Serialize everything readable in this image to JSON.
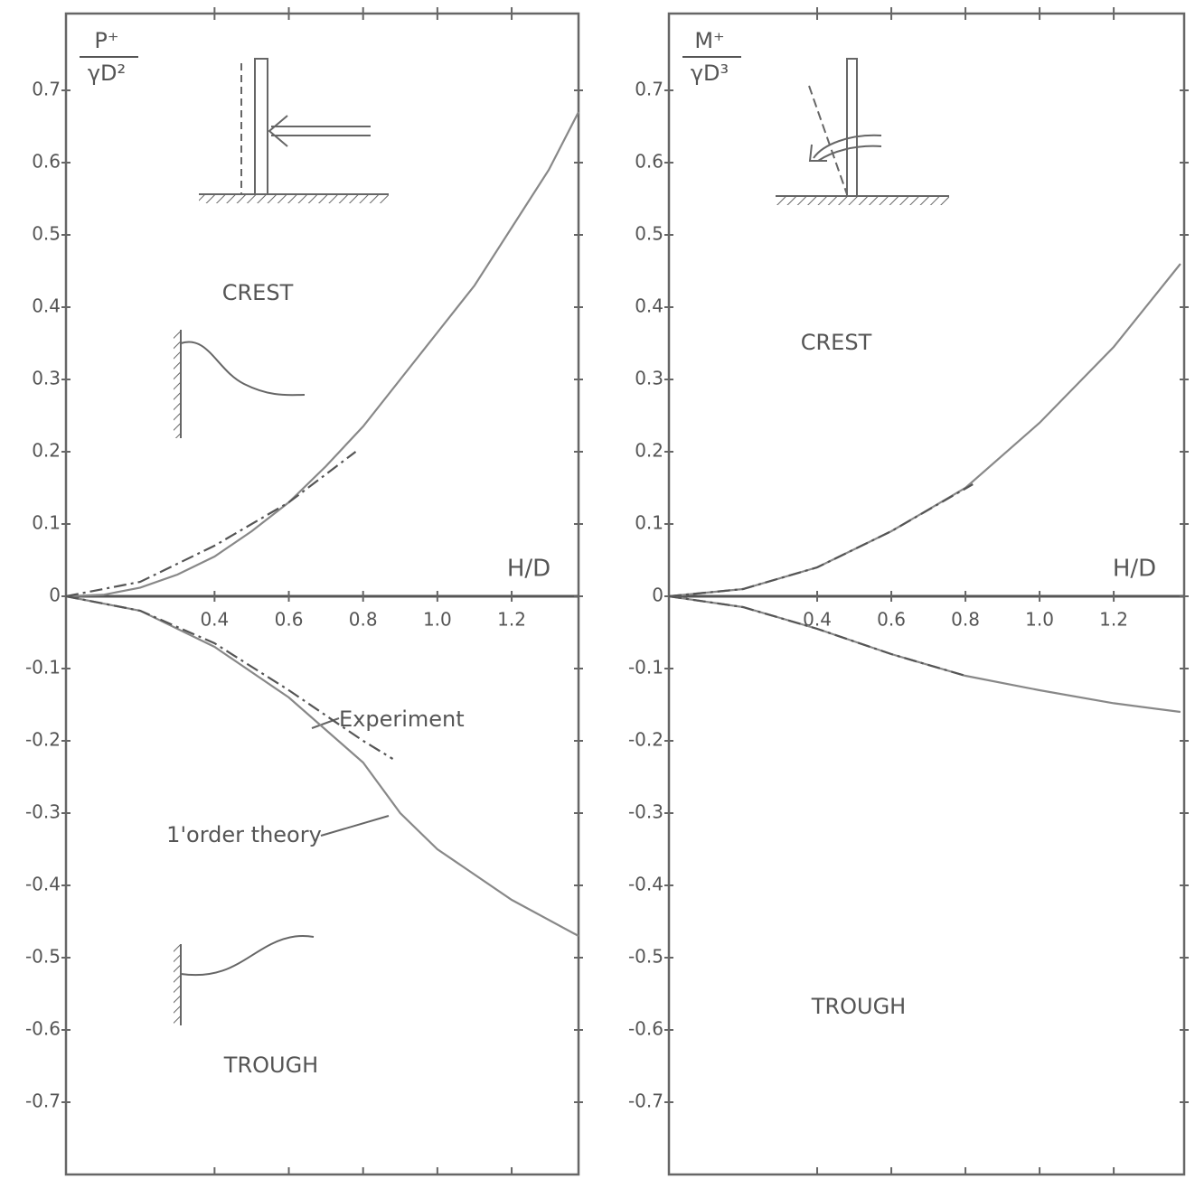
{
  "chart_data": [
    {
      "type": "line",
      "ylabel_num": "P⁺",
      "ylabel_den": "γD²",
      "xlabel": "H/D",
      "xlim": [
        0,
        1.38
      ],
      "ylim": [
        -0.8,
        0.8
      ],
      "xticks": [
        0.4,
        0.6,
        0.8,
        {
          "value": 1,
          "label": "1.0"
        },
        1.2
      ],
      "yticks": [
        0.7,
        0.6,
        0.5,
        0.4,
        0.3,
        0.2,
        0.1,
        0,
        -0.1,
        -0.2,
        -0.3,
        -0.4,
        -0.5,
        -0.6,
        -0.7
      ],
      "annotations": [
        "CREST",
        "TROUGH",
        "Experiment",
        "1'order theory"
      ],
      "series": [
        {
          "color": "#888",
          "dash": "solid",
          "x": [
            0,
            0.1,
            0.2,
            0.3,
            0.4,
            0.5,
            0.6,
            0.7,
            0.8,
            0.9,
            1.0,
            1.1,
            1.2,
            1.3,
            1.38
          ],
          "values": [
            0,
            0.002,
            0.012,
            0.03,
            0.055,
            0.09,
            0.13,
            0.18,
            0.235,
            0.3,
            0.365,
            0.43,
            0.51,
            0.59,
            0.67
          ]
        },
        {
          "color": "#555",
          "dash": "dash-dot",
          "x": [
            0,
            0.2,
            0.4,
            0.6,
            0.78
          ],
          "values": [
            0,
            0.02,
            0.07,
            0.13,
            0.2
          ]
        },
        {
          "color": "#888",
          "dash": "solid",
          "x": [
            0,
            0.2,
            0.4,
            0.6,
            0.8,
            0.9,
            1.0,
            1.2,
            1.38
          ],
          "values": [
            0,
            -0.02,
            -0.07,
            -0.14,
            -0.23,
            -0.3,
            -0.35,
            -0.42,
            -0.47
          ]
        },
        {
          "color": "#555",
          "dash": "dash-dot",
          "x": [
            0,
            0.2,
            0.4,
            0.6,
            0.8,
            0.88
          ],
          "values": [
            0,
            -0.02,
            -0.065,
            -0.13,
            -0.2,
            -0.225
          ]
        }
      ]
    },
    {
      "type": "line",
      "ylabel_num": "M⁺",
      "ylabel_den": "γD³",
      "xlabel": "H/D",
      "xlim": [
        0,
        1.39
      ],
      "ylim": [
        -0.8,
        0.8
      ],
      "xticks": [
        0.4,
        0.6,
        0.8,
        {
          "value": 1,
          "label": "1.0"
        },
        1.2
      ],
      "yticks": [
        0.7,
        0.6,
        0.5,
        0.4,
        0.3,
        0.2,
        0.1,
        0,
        -0.1,
        -0.2,
        -0.3,
        -0.4,
        -0.5,
        -0.6,
        -0.7
      ],
      "annotations": [
        "CREST",
        "TROUGH"
      ],
      "series": [
        {
          "color": "#888",
          "dash": "solid",
          "x": [
            0,
            0.2,
            0.4,
            0.6,
            0.8,
            1.0,
            1.2,
            1.38
          ],
          "values": [
            0,
            0.01,
            0.04,
            0.09,
            0.15,
            0.24,
            0.345,
            0.46
          ]
        },
        {
          "color": "#555",
          "dash": "dash-dot",
          "x": [
            0,
            0.2,
            0.4,
            0.6,
            0.82
          ],
          "values": [
            0,
            0.01,
            0.04,
            0.09,
            0.155
          ]
        },
        {
          "color": "#888",
          "dash": "solid",
          "x": [
            0,
            0.2,
            0.4,
            0.6,
            0.8,
            1.0,
            1.2,
            1.38
          ],
          "values": [
            0,
            -0.015,
            -0.045,
            -0.08,
            -0.11,
            -0.13,
            -0.148,
            -0.16
          ]
        },
        {
          "color": "#555",
          "dash": "dash-dot",
          "x": [
            0,
            0.2,
            0.4,
            0.6,
            0.8
          ],
          "values": [
            0,
            -0.015,
            -0.045,
            -0.08,
            -0.11
          ]
        }
      ]
    }
  ]
}
